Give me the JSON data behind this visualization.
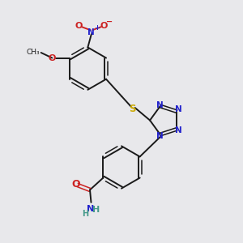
{
  "bg_color": "#e8e8eb",
  "bond_color": "#1a1a1a",
  "N_color": "#2222cc",
  "O_color": "#cc2222",
  "S_color": "#ccaa00",
  "H_color": "#44998a",
  "text_color": "#1a1a1a",
  "figsize": [
    3.0,
    3.0
  ],
  "dpi": 100,
  "xlim": [
    0,
    10
  ],
  "ylim": [
    0,
    10
  ]
}
